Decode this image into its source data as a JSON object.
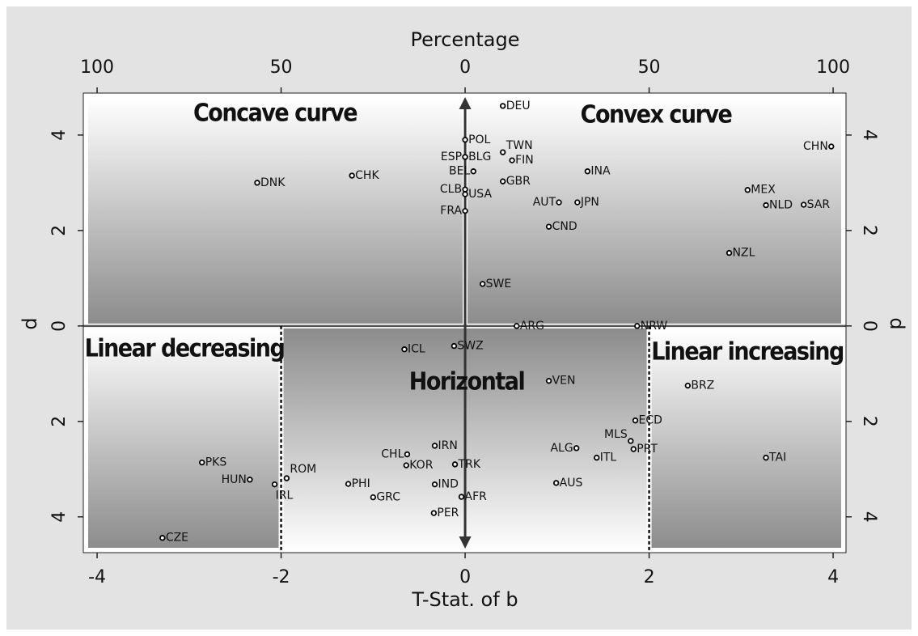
{
  "chart_data": {
    "type": "scatter",
    "x_label": "T-Stat. of b",
    "x2_label": "Percentage",
    "y_label": "d",
    "y2_label": "d",
    "xlim": [
      -4.15,
      4.14
    ],
    "ylim": [
      -4.75,
      4.88
    ],
    "xticks": [
      -4,
      -2,
      0,
      2,
      4
    ],
    "x2ticks": [
      {
        "value": -4,
        "label": "100"
      },
      {
        "value": -2,
        "label": "50"
      },
      {
        "value": 0,
        "label": "0"
      },
      {
        "value": 2,
        "label": "50"
      },
      {
        "value": 4,
        "label": "100"
      }
    ],
    "yticks": [
      {
        "value": -4,
        "label": "4"
      },
      {
        "value": -2,
        "label": "2"
      },
      0,
      2,
      4
    ],
    "critical_values": [
      -2,
      2
    ],
    "annotations": [
      "Concave curve",
      "Convex curve",
      "Linear decreasing",
      "Horizontal",
      "Linear increasing"
    ],
    "labels": [
      "DEU",
      "POL",
      "TWN",
      "ESP",
      "BLG",
      "FIN",
      "BEL",
      "CHK",
      "DNK",
      "INA",
      "GBR",
      "CLB",
      "USA",
      "MEX",
      "AUT",
      "JPN",
      "NLD",
      "SAR",
      "FRA",
      "CND",
      "CHN",
      "NZL",
      "SWE",
      "ARG",
      "NRW",
      "ICL",
      "SWZ",
      "VEN",
      "BRZ",
      "ECD",
      "IRN",
      "ALG",
      "MLS",
      "PRT",
      "CHL",
      "ITL",
      "TAI",
      "PKS",
      "KOR",
      "TRK",
      "ROM",
      "HUN",
      "AUS",
      "IRL",
      "PHI",
      "IND",
      "GRC",
      "AFR",
      "PER",
      "CZE"
    ],
    "x": [
      0.41,
      0,
      0.41,
      0,
      0,
      0.51,
      0.09,
      -1.23,
      -2.26,
      1.33,
      0.41,
      0,
      0,
      3.07,
      1.02,
      1.22,
      3.27,
      3.68,
      0,
      0.91,
      3.98,
      2.87,
      0.19,
      0.56,
      1.87,
      -0.66,
      -0.12,
      0.91,
      2.42,
      1.85,
      -0.33,
      1.21,
      1.8,
      1.83,
      -0.63,
      1.43,
      3.27,
      -2.86,
      -0.64,
      -0.11,
      -1.94,
      -2.34,
      0.99,
      -2.07,
      -1.27,
      -0.33,
      -1.0,
      -0.04,
      -0.34,
      -3.29
    ],
    "y": [
      4.61,
      3.9,
      3.64,
      3.54,
      3.54,
      3.47,
      3.24,
      3.15,
      3.0,
      3.24,
      3.03,
      2.86,
      2.76,
      2.85,
      2.59,
      2.59,
      2.53,
      2.54,
      2.41,
      2.08,
      3.76,
      1.53,
      0.88,
      0,
      0,
      -0.49,
      -0.42,
      -1.15,
      -1.25,
      -1.98,
      -2.51,
      -2.56,
      -2.41,
      -2.58,
      -2.69,
      -2.76,
      -2.76,
      -2.86,
      -2.92,
      -2.9,
      -3.19,
      -3.22,
      -3.29,
      -3.32,
      -3.31,
      -3.32,
      -3.59,
      -3.58,
      -3.92,
      -4.44
    ]
  }
}
